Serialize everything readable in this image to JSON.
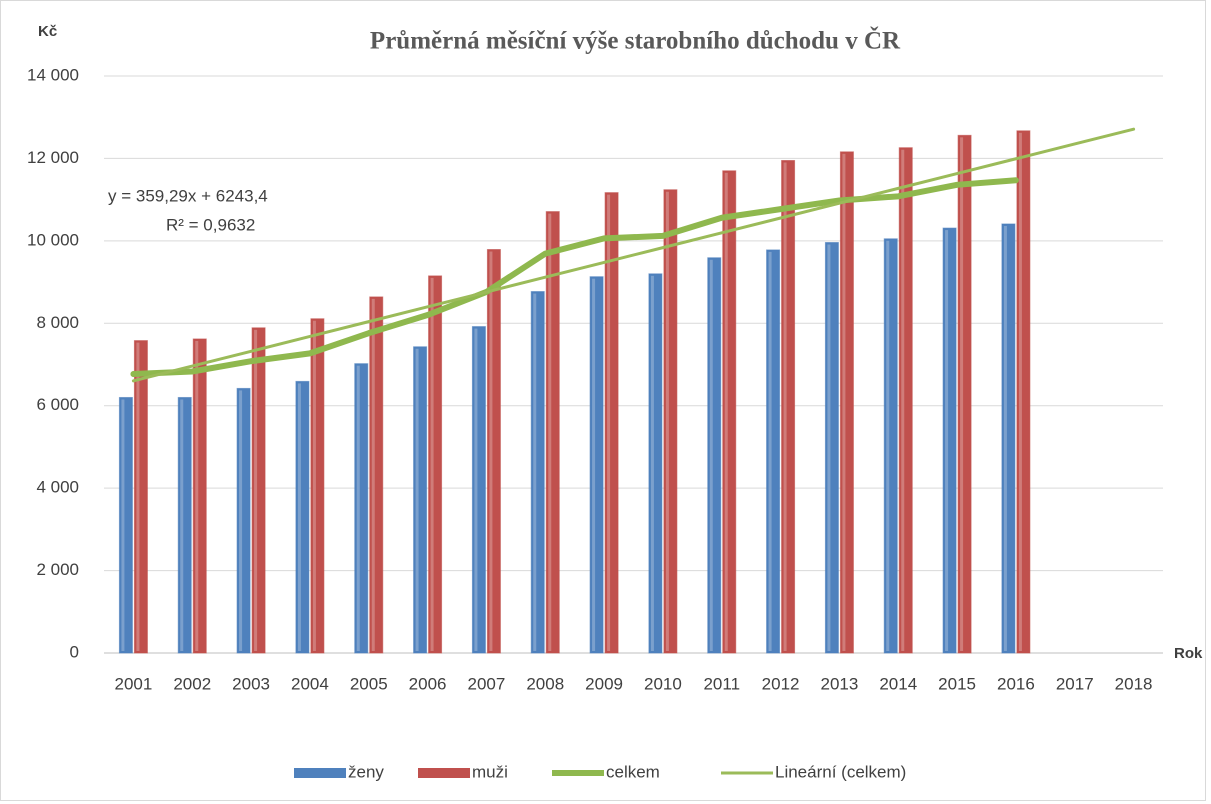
{
  "chart_data": {
    "type": "bar",
    "title": "Průměrná měsíční výše starobního důchodu v ČR",
    "y_label": "Kč",
    "x_label": "Rok",
    "annotations": [
      "y = 359,29x + 6243,4",
      "R² = 0,9632"
    ],
    "categories": [
      "2001",
      "2002",
      "2003",
      "2004",
      "2005",
      "2006",
      "2007",
      "2008",
      "2009",
      "2010",
      "2011",
      "2012",
      "2013",
      "2014",
      "2015",
      "2016",
      "2017",
      "2018"
    ],
    "series": [
      {
        "name": "ženy",
        "type": "bar",
        "color": "#4f81bd",
        "values": [
          6200,
          6200,
          6420,
          6590,
          7020,
          7430,
          7920,
          8770,
          9130,
          9200,
          9590,
          9780,
          9960,
          10050,
          10310,
          10410,
          null,
          null
        ]
      },
      {
        "name": "muži",
        "type": "bar",
        "color": "#c0504d",
        "values": [
          7580,
          7620,
          7890,
          8110,
          8640,
          9150,
          9790,
          10710,
          11170,
          11240,
          11700,
          11950,
          12160,
          12260,
          12560,
          12670,
          null,
          null
        ]
      },
      {
        "name": "celkem",
        "type": "line",
        "color": "#8fb84e",
        "values": [
          6770,
          6830,
          7080,
          7270,
          7760,
          8200,
          8760,
          9690,
          10060,
          10120,
          10560,
          10770,
          10980,
          11080,
          11360,
          11470,
          null,
          null
        ]
      },
      {
        "name": "Lineární (celkem)",
        "type": "trend",
        "color": "#9bbb59",
        "values": [
          6603,
          6962,
          7321,
          7681,
          8040,
          8399,
          8758,
          9118,
          9477,
          9836,
          10195,
          10555,
          10914,
          11273,
          11633,
          11992,
          12351,
          12710
        ]
      }
    ],
    "ylim": [
      0,
      14000
    ],
    "yticks": [
      0,
      {
        "value": 2000,
        "label": "2 000"
      },
      {
        "value": 4000,
        "label": "4 000"
      },
      {
        "value": 6000,
        "label": "6 000"
      },
      {
        "value": 8000,
        "label": "8 000"
      },
      {
        "value": 10000,
        "label": "10 000"
      },
      {
        "value": 12000,
        "label": "12 000"
      },
      {
        "value": 14000,
        "label": "14 000"
      }
    ],
    "grid": true,
    "legend": "bottom"
  }
}
